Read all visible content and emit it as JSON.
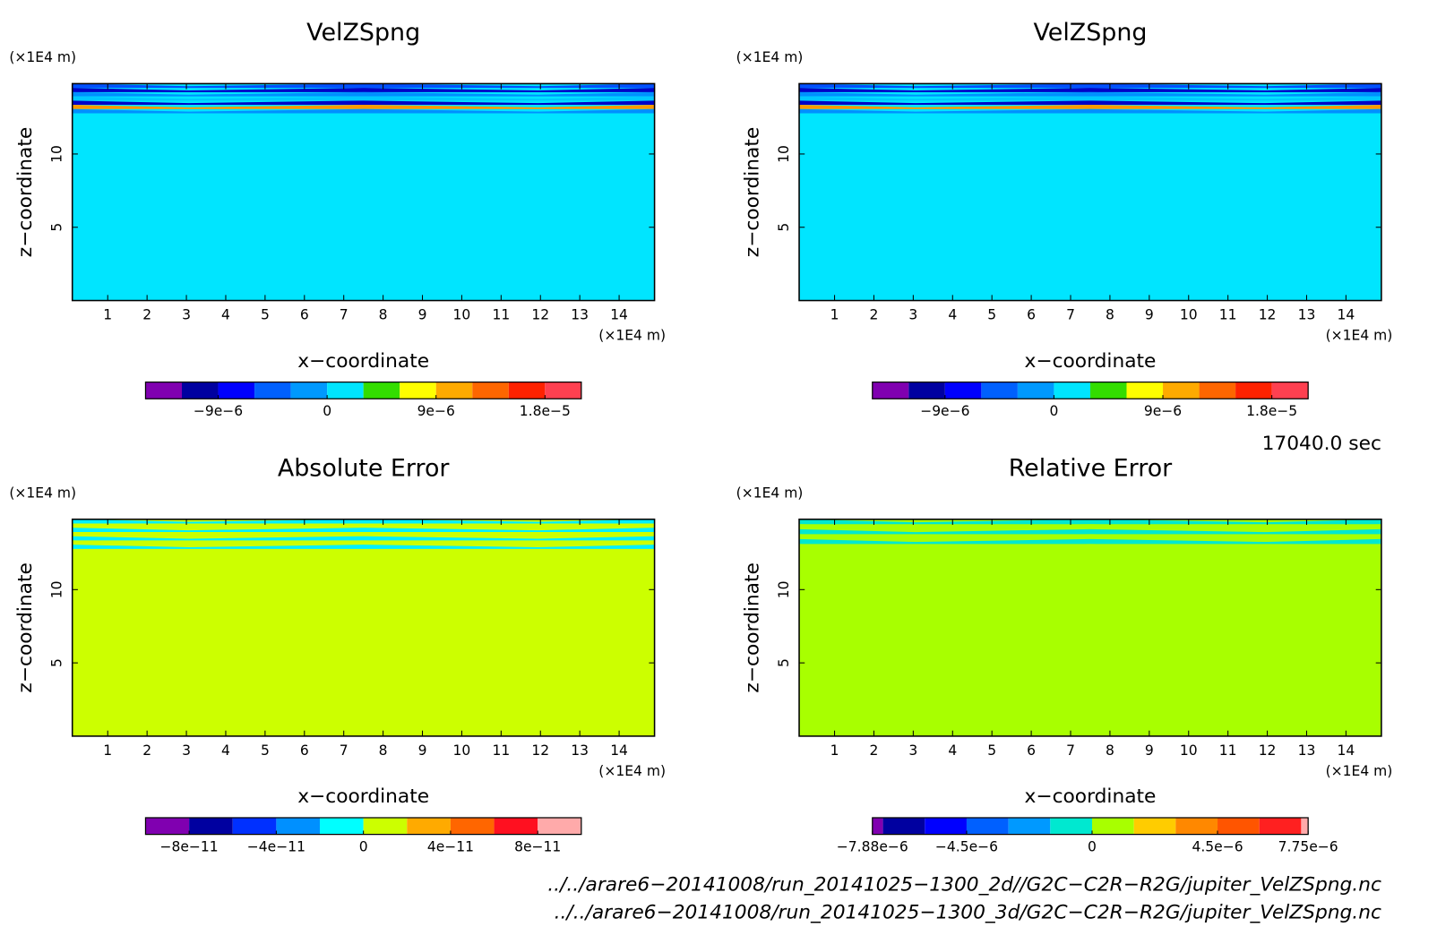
{
  "chart_data": [
    {
      "type": "contour",
      "title": "VelZSpng",
      "xlabel": "x−coordinate",
      "ylabel": "z−coordinate",
      "x_unit": "(×1E4 m)",
      "y_unit": "(×1E4 m)",
      "xlim": [
        0.1,
        14.9
      ],
      "ylim": [
        0,
        14.8
      ],
      "xticks": [
        1,
        2,
        3,
        4,
        5,
        6,
        7,
        8,
        9,
        10,
        11,
        12,
        13,
        14
      ],
      "yticks": [
        5,
        10
      ],
      "field_color": "#00e5ff",
      "band_colors": [
        "#0050ff",
        "#0000c8",
        "#0090ff",
        "#00c8ff",
        "#0000c8",
        "#ff9900",
        "#0090ff"
      ],
      "colorbar": {
        "levels": [
          -1.5e-05,
          -1.2e-05,
          -9e-06,
          -6e-06,
          -3e-06,
          0,
          3e-06,
          6e-06,
          9e-06,
          1.2e-05,
          1.5e-05,
          1.8e-05,
          2.1e-05
        ],
        "colors": [
          "#8000b0",
          "#0000a0",
          "#0000ff",
          "#0060ff",
          "#0099ff",
          "#00e5ff",
          "#33dd00",
          "#ffff00",
          "#ffaa00",
          "#ff6600",
          "#ff2200",
          "#ff4050"
        ],
        "ticks": [
          {
            "value": -9e-06,
            "label": "−9e−6"
          },
          0,
          {
            "value": 9e-06,
            "label": "9e−6"
          },
          {
            "value": 1.8e-05,
            "label": "1.8e−5"
          }
        ]
      }
    },
    {
      "type": "contour",
      "title": "VelZSpng",
      "xlabel": "x−coordinate",
      "ylabel": "z−coordinate",
      "x_unit": "(×1E4 m)",
      "y_unit": "(×1E4 m)",
      "xlim": [
        0.1,
        14.9
      ],
      "ylim": [
        0,
        14.8
      ],
      "xticks": [
        1,
        2,
        3,
        4,
        5,
        6,
        7,
        8,
        9,
        10,
        11,
        12,
        13,
        14
      ],
      "yticks": [
        5,
        10
      ],
      "field_color": "#00e5ff",
      "band_colors": [
        "#0050ff",
        "#0000c8",
        "#0090ff",
        "#00c8ff",
        "#0000c8",
        "#ff9900",
        "#0090ff"
      ],
      "colorbar": {
        "levels": [
          -1.5e-05,
          -1.2e-05,
          -9e-06,
          -6e-06,
          -3e-06,
          0,
          3e-06,
          6e-06,
          9e-06,
          1.2e-05,
          1.5e-05,
          1.8e-05,
          2.1e-05
        ],
        "colors": [
          "#8000b0",
          "#0000a0",
          "#0000ff",
          "#0060ff",
          "#0099ff",
          "#00e5ff",
          "#33dd00",
          "#ffff00",
          "#ffaa00",
          "#ff6600",
          "#ff2200",
          "#ff4050"
        ],
        "ticks": [
          {
            "value": -9e-06,
            "label": "−9e−6"
          },
          0,
          {
            "value": 9e-06,
            "label": "9e−6"
          },
          {
            "value": 1.8e-05,
            "label": "1.8e−5"
          }
        ]
      }
    },
    {
      "type": "contour",
      "title": "Absolute Error",
      "xlabel": "x−coordinate",
      "ylabel": "z−coordinate",
      "x_unit": "(×1E4 m)",
      "y_unit": "(×1E4 m)",
      "xlim": [
        0.1,
        14.9
      ],
      "ylim": [
        0,
        14.8
      ],
      "xticks": [
        1,
        2,
        3,
        4,
        5,
        6,
        7,
        8,
        9,
        10,
        11,
        12,
        13,
        14
      ],
      "yticks": [
        5,
        10
      ],
      "field_color": "#ccff00",
      "band_colors": [
        "#00f0ff",
        "#ccff00",
        "#00f0ff",
        "#ccff00",
        "#00f0ff",
        "#ccff00",
        "#00f0ff"
      ],
      "colorbar": {
        "levels": [
          -1e-10,
          -8e-11,
          -6e-11,
          -4e-11,
          -2e-11,
          0,
          2e-11,
          4e-11,
          6e-11,
          8e-11,
          1e-10
        ],
        "colors": [
          "#8000b0",
          "#0000a0",
          "#0030ff",
          "#0090ff",
          "#00ffff",
          "#ccff00",
          "#ffaa00",
          "#ff6600",
          "#ff1020",
          "#ffaaaa"
        ],
        "ticks": [
          {
            "value": -8e-11,
            "label": "−8e−11"
          },
          {
            "value": -4e-11,
            "label": "−4e−11"
          },
          0,
          {
            "value": 4e-11,
            "label": "4e−11"
          },
          {
            "value": 8e-11,
            "label": "8e−11"
          }
        ]
      }
    },
    {
      "type": "contour",
      "title": "Relative Error",
      "xlabel": "x−coordinate",
      "ylabel": "z−coordinate",
      "x_unit": "(×1E4 m)",
      "y_unit": "(×1E4 m)",
      "xlim": [
        0.1,
        14.9
      ],
      "ylim": [
        0,
        14.8
      ],
      "xticks": [
        1,
        2,
        3,
        4,
        5,
        6,
        7,
        8,
        9,
        10,
        11,
        12,
        13,
        14
      ],
      "yticks": [
        5,
        10
      ],
      "field_color": "#a8ff00",
      "band_colors": [
        "#00e8d0",
        "#a8ff00",
        "#00e8d0",
        "#a8ff00",
        "#00e8d0",
        "#a8ff00"
      ],
      "colorbar": {
        "levels": [
          -7.88e-06,
          -7.5e-06,
          -6e-06,
          -4.5e-06,
          -3e-06,
          -1.5e-06,
          0,
          1.5e-06,
          3e-06,
          4.5e-06,
          6e-06,
          7.5e-06,
          7.75e-06
        ],
        "colors": [
          "#8000b0",
          "#0000a0",
          "#0000ff",
          "#0060ff",
          "#0099ff",
          "#00e8d0",
          "#a8ff00",
          "#ffcc00",
          "#ff8800",
          "#ff5500",
          "#ff2020",
          "#ffaaaa"
        ],
        "ticks": [
          {
            "value": -7.88e-06,
            "label": "−7.88e−6"
          },
          {
            "value": -4.5e-06,
            "label": "−4.5e−6"
          },
          0,
          {
            "value": 4.5e-06,
            "label": "4.5e−6"
          },
          {
            "value": 7.75e-06,
            "label": "7.75e−6"
          }
        ]
      }
    }
  ],
  "time_label": "17040.0 sec",
  "file_paths": [
    "../../arare6−20141008/run_20141025−1300_2d//G2C−C2R−R2G/jupiter_VelZSpng.nc",
    "../../arare6−20141008/run_20141025−1300_3d/G2C−C2R−R2G/jupiter_VelZSpng.nc"
  ]
}
